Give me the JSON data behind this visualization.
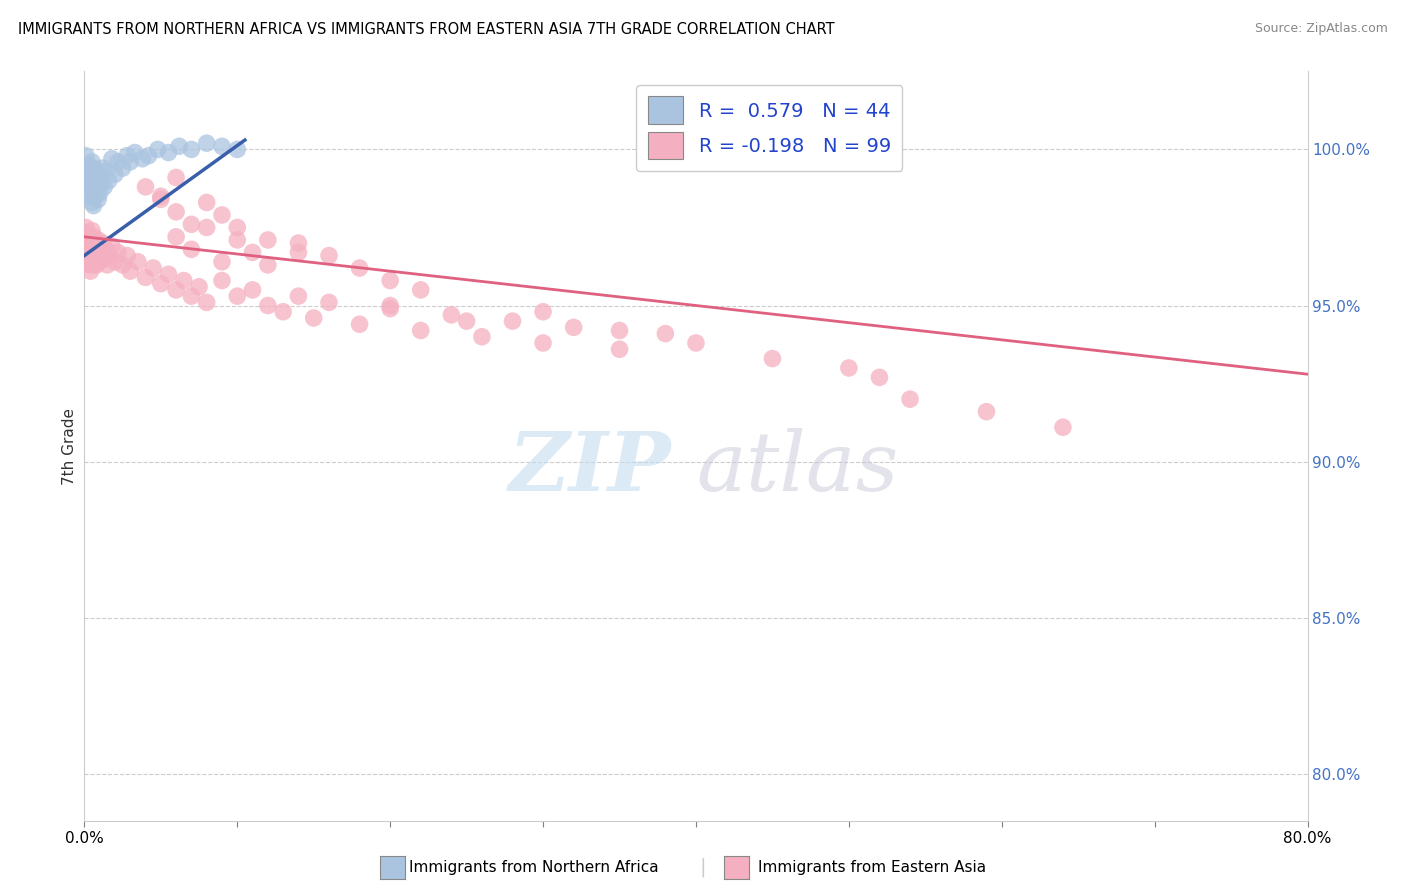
{
  "title": "IMMIGRANTS FROM NORTHERN AFRICA VS IMMIGRANTS FROM EASTERN ASIA 7TH GRADE CORRELATION CHART",
  "source": "Source: ZipAtlas.com",
  "ylabel": "7th Grade",
  "right_yticks": [
    "100.0%",
    "95.0%",
    "90.0%",
    "85.0%",
    "80.0%"
  ],
  "right_ytick_vals": [
    1.0,
    0.95,
    0.9,
    0.85,
    0.8
  ],
  "xmin": 0.0,
  "xmax": 0.8,
  "ymin": 0.785,
  "ymax": 1.025,
  "blue_color": "#aac4e0",
  "pink_color": "#f4afc0",
  "blue_line_color": "#3a5faa",
  "pink_line_color": "#e06080",
  "blue_r": 0.579,
  "blue_n": 44,
  "pink_r": -0.198,
  "pink_n": 99,
  "blue_line_x0": 0.0,
  "blue_line_x1": 0.105,
  "blue_line_y0": 0.966,
  "blue_line_y1": 1.003,
  "pink_line_x0": 0.0,
  "pink_line_x1": 0.8,
  "pink_line_y0": 0.972,
  "pink_line_y1": 0.928,
  "blue_x": [
    0.001,
    0.001,
    0.002,
    0.002,
    0.003,
    0.003,
    0.003,
    0.004,
    0.004,
    0.005,
    0.005,
    0.005,
    0.006,
    0.006,
    0.006,
    0.007,
    0.007,
    0.008,
    0.008,
    0.009,
    0.009,
    0.01,
    0.01,
    0.011,
    0.012,
    0.013,
    0.014,
    0.016,
    0.018,
    0.02,
    0.022,
    0.025,
    0.028,
    0.03,
    0.033,
    0.038,
    0.042,
    0.048,
    0.055,
    0.062,
    0.07,
    0.08,
    0.09,
    0.1
  ],
  "blue_y": [
    0.998,
    0.993,
    0.995,
    0.99,
    0.994,
    0.988,
    0.985,
    0.992,
    0.987,
    0.996,
    0.989,
    0.983,
    0.994,
    0.988,
    0.982,
    0.991,
    0.985,
    0.993,
    0.987,
    0.99,
    0.984,
    0.992,
    0.986,
    0.989,
    0.994,
    0.988,
    0.993,
    0.99,
    0.997,
    0.992,
    0.996,
    0.994,
    0.998,
    0.996,
    0.999,
    0.997,
    0.998,
    1.0,
    0.999,
    1.001,
    1.0,
    1.002,
    1.001,
    1.0
  ],
  "pink_x": [
    0.001,
    0.001,
    0.002,
    0.002,
    0.002,
    0.003,
    0.003,
    0.003,
    0.004,
    0.004,
    0.004,
    0.005,
    0.005,
    0.005,
    0.006,
    0.006,
    0.006,
    0.007,
    0.007,
    0.008,
    0.008,
    0.009,
    0.009,
    0.01,
    0.01,
    0.011,
    0.012,
    0.013,
    0.014,
    0.015,
    0.016,
    0.018,
    0.02,
    0.022,
    0.025,
    0.028,
    0.03,
    0.035,
    0.04,
    0.045,
    0.05,
    0.055,
    0.06,
    0.065,
    0.07,
    0.075,
    0.08,
    0.09,
    0.1,
    0.11,
    0.12,
    0.13,
    0.14,
    0.15,
    0.16,
    0.18,
    0.2,
    0.22,
    0.24,
    0.26,
    0.28,
    0.3,
    0.32,
    0.35,
    0.38,
    0.06,
    0.07,
    0.08,
    0.09,
    0.1,
    0.11,
    0.12,
    0.14,
    0.16,
    0.18,
    0.2,
    0.22,
    0.05,
    0.06,
    0.07,
    0.08,
    0.09,
    0.1,
    0.12,
    0.14,
    0.04,
    0.05,
    0.06,
    0.2,
    0.25,
    0.3,
    0.35,
    0.4,
    0.45,
    0.5,
    0.52,
    0.54,
    0.59,
    0.64
  ],
  "pink_y": [
    0.975,
    0.97,
    0.973,
    0.968,
    0.964,
    0.972,
    0.967,
    0.963,
    0.97,
    0.965,
    0.961,
    0.974,
    0.969,
    0.964,
    0.972,
    0.967,
    0.963,
    0.97,
    0.965,
    0.968,
    0.963,
    0.971,
    0.966,
    0.969,
    0.964,
    0.967,
    0.97,
    0.965,
    0.968,
    0.963,
    0.966,
    0.969,
    0.964,
    0.967,
    0.963,
    0.966,
    0.961,
    0.964,
    0.959,
    0.962,
    0.957,
    0.96,
    0.955,
    0.958,
    0.953,
    0.956,
    0.951,
    0.958,
    0.953,
    0.955,
    0.95,
    0.948,
    0.953,
    0.946,
    0.951,
    0.944,
    0.949,
    0.942,
    0.947,
    0.94,
    0.945,
    0.938,
    0.943,
    0.936,
    0.941,
    0.972,
    0.968,
    0.975,
    0.964,
    0.971,
    0.967,
    0.963,
    0.97,
    0.966,
    0.962,
    0.958,
    0.955,
    0.985,
    0.98,
    0.976,
    0.983,
    0.979,
    0.975,
    0.971,
    0.967,
    0.988,
    0.984,
    0.991,
    0.95,
    0.945,
    0.948,
    0.942,
    0.938,
    0.933,
    0.93,
    0.927,
    0.92,
    0.916,
    0.911
  ]
}
